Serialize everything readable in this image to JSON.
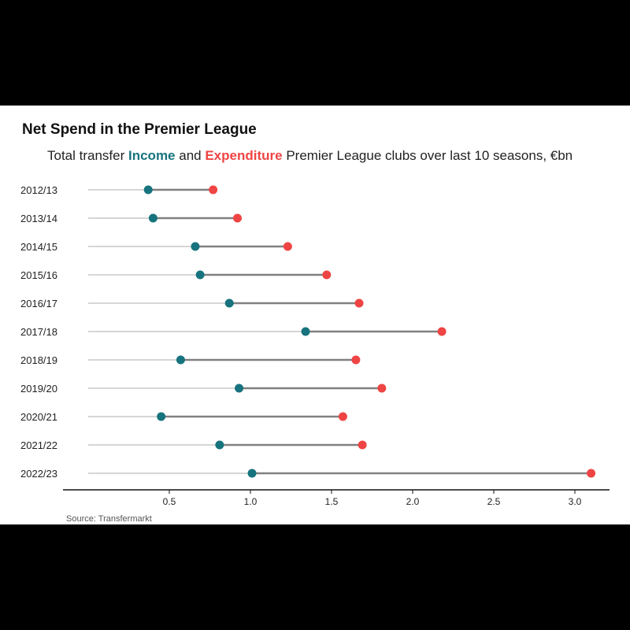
{
  "chart_data": {
    "type": "dumbbell",
    "title": "Net Spend in the Premier League",
    "subtitle": {
      "before": "Total transfer ",
      "income_word": "Income",
      "middle": " and ",
      "expenditure_word": "Expenditure",
      "after": " Premier League clubs over last 10 seasons, €bn"
    },
    "source": "Source: Transfermarkt",
    "categories": [
      "2012/13",
      "2013/14",
      "2014/15",
      "2015/16",
      "2016/17",
      "2017/18",
      "2018/19",
      "2019/20",
      "2020/21",
      "2021/22",
      "2022/23"
    ],
    "series": [
      {
        "name": "Income",
        "color": "#17737e",
        "values": [
          0.37,
          0.4,
          0.66,
          0.69,
          0.87,
          1.34,
          0.57,
          0.93,
          0.45,
          0.81,
          1.01
        ]
      },
      {
        "name": "Expenditure",
        "color": "#ef4444",
        "values": [
          0.77,
          0.92,
          1.23,
          1.47,
          1.67,
          2.18,
          1.65,
          1.81,
          1.57,
          1.69,
          3.1
        ]
      }
    ],
    "xlim": [
      0,
      3.2
    ],
    "xticks": [
      0.5,
      1.0,
      1.5,
      2.0,
      2.5,
      3.0
    ],
    "xtick_labels": [
      "0.5",
      "1.0",
      "1.5",
      "2.0",
      "2.5",
      "3.0"
    ],
    "xlabel": "",
    "ylabel": "",
    "grid": "horizontal row guides",
    "legend": "in subtitle"
  }
}
